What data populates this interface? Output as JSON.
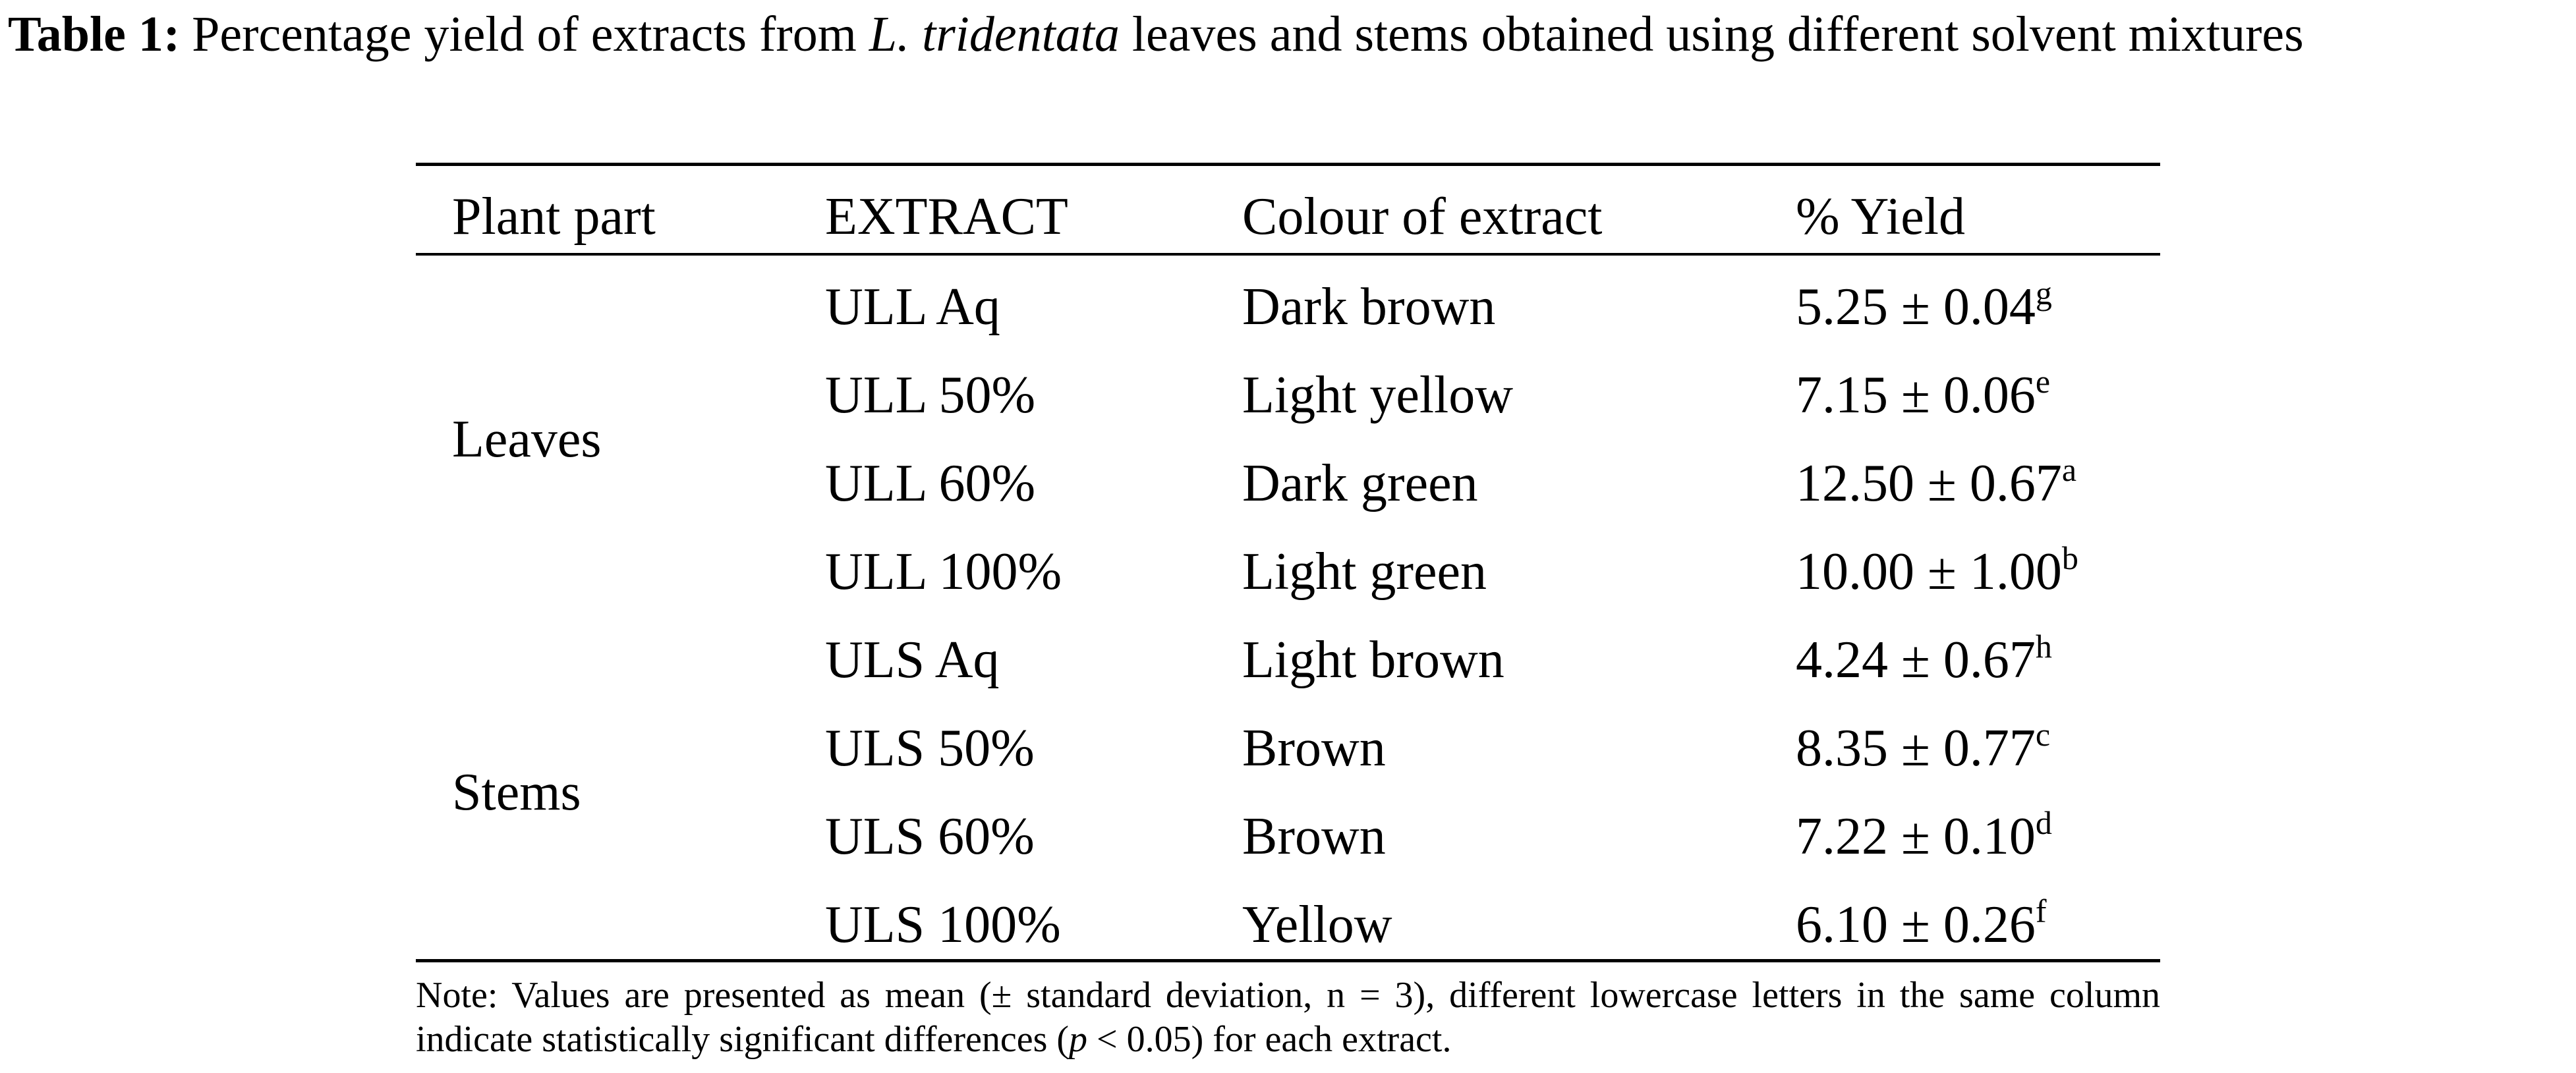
{
  "caption": {
    "label": "Table 1:",
    "text_before": "Percentage yield of extracts from ",
    "species": "L. tridentata",
    "text_after": " leaves and stems obtained using different solvent mixtures"
  },
  "table": {
    "headers": [
      "Plant part",
      "EXTRACT",
      "Colour of extract",
      "% Yield"
    ],
    "groups": [
      {
        "plant_part": "Leaves",
        "rows": [
          {
            "extract": "ULL Aq",
            "colour": "Dark brown",
            "yield": "5.25 ± 0.04",
            "letter": "g"
          },
          {
            "extract": "ULL 50%",
            "colour": "Light yellow",
            "yield": "7.15 ± 0.06",
            "letter": "e"
          },
          {
            "extract": "ULL 60%",
            "colour": "Dark green",
            "yield": "12.50 ± 0.67",
            "letter": "a"
          },
          {
            "extract": "ULL 100%",
            "colour": "Light green",
            "yield": "10.00 ± 1.00",
            "letter": "b"
          }
        ]
      },
      {
        "plant_part": "Stems",
        "rows": [
          {
            "extract": "ULS Aq",
            "colour": "Light brown",
            "yield": "4.24 ± 0.67",
            "letter": "h"
          },
          {
            "extract": "ULS 50%",
            "colour": "Brown",
            "yield": "8.35 ± 0.77",
            "letter": "c"
          },
          {
            "extract": "ULS 60%",
            "colour": "Brown",
            "yield": "7.22 ± 0.10",
            "letter": "d"
          },
          {
            "extract": "ULS 100%",
            "colour": "Yellow",
            "yield": "6.10 ± 0.26",
            "letter": "f"
          }
        ]
      }
    ]
  },
  "note": {
    "text_before": "Note: Values are presented as mean (± standard deviation, n = 3), different lowercase letters in the same column indicate statistically significant differences (",
    "p": "p",
    "text_after": " < 0.05) for each extract."
  }
}
